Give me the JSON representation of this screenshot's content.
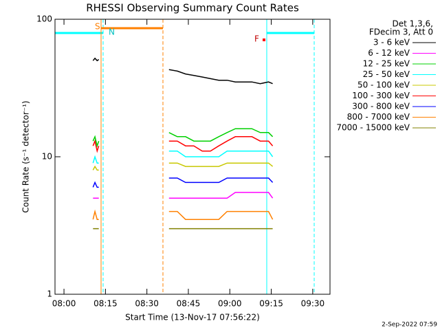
{
  "chart_data": {
    "type": "line",
    "title": "RHESSI Observing Summary Count Rates",
    "xlabel": "Start Time (13-Nov-17 07:56:22)",
    "ylabel": "Count Rate (s⁻¹ detector⁻¹)",
    "legend_title": [
      "Det 1,3,6,",
      "FDecim 3, Att 0"
    ],
    "footer": "2-Sep-2022 07:59",
    "annotations": [
      "S",
      "N",
      "F"
    ],
    "log_y": true,
    "xlim": [
      476.75,
      576.25
    ],
    "xticks": [
      {
        "value": 480,
        "label": "08:00"
      },
      {
        "value": 495,
        "label": "08:15"
      },
      {
        "value": 510,
        "label": "08:30"
      },
      {
        "value": 525,
        "label": "08:45"
      },
      {
        "value": 540,
        "label": "09:00"
      },
      {
        "value": 555,
        "label": "09:15"
      },
      {
        "value": 570,
        "label": "09:30"
      }
    ],
    "ylim": [
      1,
      100
    ],
    "yticks": [
      1,
      10,
      100
    ],
    "x": [
      490.5,
      491.2,
      492,
      492.6,
      505,
      518,
      521,
      524,
      527,
      530,
      533,
      536,
      539,
      542,
      545,
      548,
      551,
      554,
      555.5
    ],
    "series": [
      {
        "name": "3 - 6 keV",
        "color": "#000000",
        "values": [
          50,
          52,
          50,
          51,
          null,
          43,
          42,
          40,
          39,
          38,
          37,
          36,
          36,
          35,
          35,
          35,
          34,
          35,
          34
        ]
      },
      {
        "name": "6 - 12 keV",
        "color": "#ff00ff",
        "values": [
          5,
          5,
          5,
          5,
          null,
          5,
          5,
          5,
          5,
          5,
          5,
          5,
          5,
          5.5,
          5.5,
          5.5,
          5.5,
          5.5,
          5
        ]
      },
      {
        "name": "12 - 25 keV",
        "color": "#00d000",
        "values": [
          13,
          14,
          12,
          13,
          null,
          15,
          14,
          14,
          13,
          13,
          13,
          14,
          15,
          16,
          16,
          16,
          15,
          15,
          14
        ]
      },
      {
        "name": "25 - 50 keV",
        "color": "#00ffff",
        "values": [
          9,
          10,
          9,
          9,
          null,
          11,
          11,
          10,
          10,
          10,
          10,
          10,
          11,
          11,
          11,
          11,
          11,
          11,
          10
        ]
      },
      {
        "name": "50 - 100 keV",
        "color": "#c8c800",
        "values": [
          8,
          8.5,
          8,
          8,
          null,
          9,
          9,
          8.5,
          8.5,
          8.5,
          8.5,
          8.5,
          9,
          9,
          9,
          9,
          9,
          9,
          8.5
        ]
      },
      {
        "name": "100 - 300 keV",
        "color": "#ff0000",
        "values": [
          12,
          13,
          11,
          12,
          null,
          13,
          13,
          12,
          12,
          11,
          11,
          12,
          13,
          14,
          14,
          14,
          13,
          13,
          12
        ]
      },
      {
        "name": "300 - 800 keV",
        "color": "#0000ff",
        "values": [
          6,
          6.5,
          6,
          6,
          null,
          7,
          7,
          6.5,
          6.5,
          6.5,
          6.5,
          6.5,
          7,
          7,
          7,
          7,
          7,
          7,
          6.5
        ]
      },
      {
        "name": "800 - 7000 keV",
        "color": "#ff8000",
        "values": [
          3.5,
          4,
          3.5,
          3.5,
          null,
          4,
          4,
          3.5,
          3.5,
          3.5,
          3.5,
          3.5,
          4,
          4,
          4,
          4,
          4,
          4,
          3.5
        ]
      },
      {
        "name": "7000 - 15000 keV",
        "color": "#808000",
        "values": [
          3,
          3,
          3,
          3,
          null,
          3,
          3,
          3,
          3,
          3,
          3,
          3,
          3,
          3,
          3,
          3,
          3,
          3,
          3
        ]
      }
    ]
  }
}
